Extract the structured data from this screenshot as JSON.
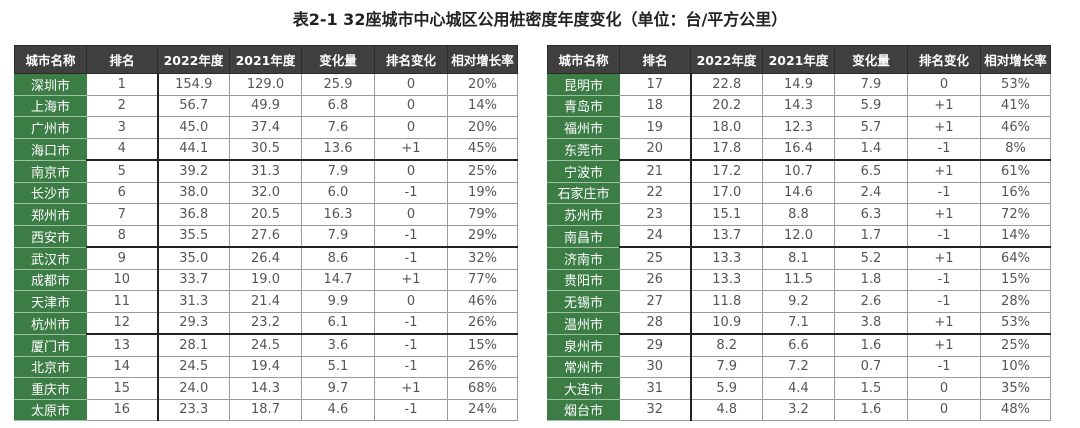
{
  "title": "表2-1 32座城市中心城区公用桩密度年度变化（单位：台/平方公里）",
  "colors": {
    "header_bg": "#3f3f3f",
    "city_bg": "#3b7d45"
  },
  "columns": [
    "城市名称",
    "排名",
    "2022年度",
    "2021年度",
    "变化量",
    "排名变化",
    "相对增长率"
  ],
  "left_rows": [
    [
      "深圳市",
      "1",
      "154.9",
      "129.0",
      "25.9",
      "0",
      "20%"
    ],
    [
      "上海市",
      "2",
      "56.7",
      "49.9",
      "6.8",
      "0",
      "14%"
    ],
    [
      "广州市",
      "3",
      "45.0",
      "37.4",
      "7.6",
      "0",
      "20%"
    ],
    [
      "海口市",
      "4",
      "44.1",
      "30.5",
      "13.6",
      "+1",
      "45%"
    ],
    [
      "南京市",
      "5",
      "39.2",
      "31.3",
      "7.9",
      "0",
      "25%"
    ],
    [
      "长沙市",
      "6",
      "38.0",
      "32.0",
      "6.0",
      "-1",
      "19%"
    ],
    [
      "郑州市",
      "7",
      "36.8",
      "20.5",
      "16.3",
      "0",
      "79%"
    ],
    [
      "西安市",
      "8",
      "35.5",
      "27.6",
      "7.9",
      "-1",
      "29%"
    ],
    [
      "武汉市",
      "9",
      "35.0",
      "26.4",
      "8.6",
      "-1",
      "32%"
    ],
    [
      "成都市",
      "10",
      "33.7",
      "19.0",
      "14.7",
      "+1",
      "77%"
    ],
    [
      "天津市",
      "11",
      "31.3",
      "21.4",
      "9.9",
      "0",
      "46%"
    ],
    [
      "杭州市",
      "12",
      "29.3",
      "23.2",
      "6.1",
      "-1",
      "26%"
    ],
    [
      "厦门市",
      "13",
      "28.1",
      "24.5",
      "3.6",
      "-1",
      "15%"
    ],
    [
      "北京市",
      "14",
      "24.5",
      "19.4",
      "5.1",
      "-1",
      "26%"
    ],
    [
      "重庆市",
      "15",
      "24.0",
      "14.3",
      "9.7",
      "+1",
      "68%"
    ],
    [
      "太原市",
      "16",
      "23.3",
      "18.7",
      "4.6",
      "-1",
      "24%"
    ]
  ],
  "right_rows": [
    [
      "昆明市",
      "17",
      "22.8",
      "14.9",
      "7.9",
      "0",
      "53%"
    ],
    [
      "青岛市",
      "18",
      "20.2",
      "14.3",
      "5.9",
      "+1",
      "41%"
    ],
    [
      "福州市",
      "19",
      "18.0",
      "12.3",
      "5.7",
      "+1",
      "46%"
    ],
    [
      "东莞市",
      "20",
      "17.8",
      "16.4",
      "1.4",
      "-1",
      "8%"
    ],
    [
      "宁波市",
      "21",
      "17.2",
      "10.7",
      "6.5",
      "+1",
      "61%"
    ],
    [
      "石家庄市",
      "22",
      "17.0",
      "14.6",
      "2.4",
      "-1",
      "16%"
    ],
    [
      "苏州市",
      "23",
      "15.1",
      "8.8",
      "6.3",
      "+1",
      "72%"
    ],
    [
      "南昌市",
      "24",
      "13.7",
      "12.0",
      "1.7",
      "-1",
      "14%"
    ],
    [
      "济南市",
      "25",
      "13.3",
      "8.1",
      "5.2",
      "+1",
      "64%"
    ],
    [
      "贵阳市",
      "26",
      "13.3",
      "11.5",
      "1.8",
      "-1",
      "15%"
    ],
    [
      "无锡市",
      "27",
      "11.8",
      "9.2",
      "2.6",
      "-1",
      "28%"
    ],
    [
      "温州市",
      "28",
      "10.9",
      "7.1",
      "3.8",
      "+1",
      "53%"
    ],
    [
      "泉州市",
      "29",
      "8.2",
      "6.6",
      "1.6",
      "+1",
      "25%"
    ],
    [
      "常州市",
      "30",
      "7.9",
      "7.2",
      "0.7",
      "-1",
      "10%"
    ],
    [
      "大连市",
      "31",
      "5.9",
      "4.4",
      "1.5",
      "0",
      "35%"
    ],
    [
      "烟台市",
      "32",
      "4.8",
      "3.2",
      "1.6",
      "0",
      "48%"
    ]
  ]
}
